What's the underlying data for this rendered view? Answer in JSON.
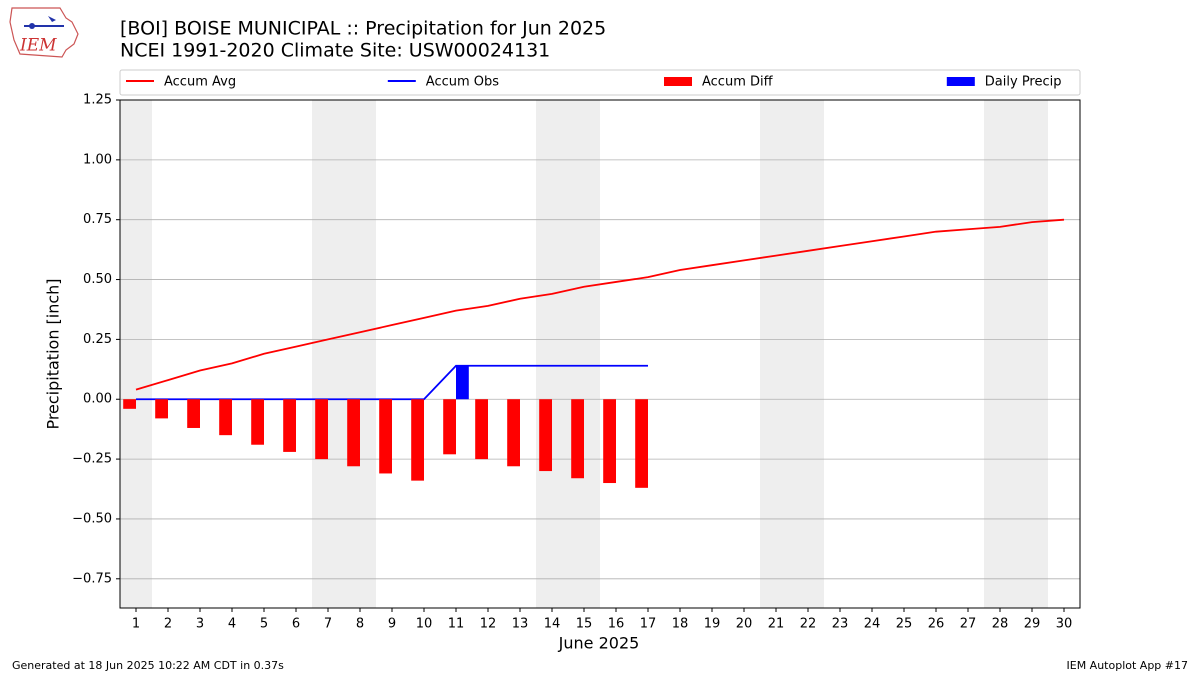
{
  "chart_data": {
    "type": "combo",
    "title": "[BOI] BOISE MUNICIPAL :: Precipitation for Jun 2025",
    "subtitle": "NCEI 1991-2020 Climate Site: USW00024131",
    "ylabel": "Precipitation [inch]",
    "xlabel": "June 2025",
    "x": [
      1,
      2,
      3,
      4,
      5,
      6,
      7,
      8,
      9,
      10,
      11,
      12,
      13,
      14,
      15,
      16,
      17,
      18,
      19,
      20,
      21,
      22,
      23,
      24,
      25,
      26,
      27,
      28,
      29,
      30
    ],
    "xlim": [
      0.5,
      30.5
    ],
    "xticks": [
      1,
      2,
      3,
      4,
      5,
      6,
      7,
      8,
      9,
      10,
      11,
      12,
      13,
      14,
      15,
      16,
      17,
      18,
      19,
      20,
      21,
      22,
      23,
      24,
      25,
      26,
      27,
      28,
      29,
      30
    ],
    "ylim": [
      -0.872,
      1.25
    ],
    "yticks": [
      {
        "value": -0.75,
        "label": "−0.75"
      },
      {
        "value": -0.5,
        "label": "−0.50"
      },
      {
        "value": -0.25,
        "label": "−0.25"
      },
      {
        "value": 0,
        "label": "0.00"
      },
      {
        "value": 0.25,
        "label": "0.25"
      },
      {
        "value": 0.5,
        "label": "0.50"
      },
      {
        "value": 0.75,
        "label": "0.75"
      },
      {
        "value": 1,
        "label": "1.00"
      },
      {
        "value": 1.25,
        "label": "1.25"
      }
    ],
    "grid": true,
    "shaded_days": [
      1,
      7,
      8,
      14,
      15,
      21,
      22,
      28,
      29
    ],
    "legend": "top",
    "series": [
      {
        "name": "Accum Avg",
        "kind": "line",
        "color": "#ff0000",
        "values": [
          0.04,
          0.08,
          0.12,
          0.15,
          0.19,
          0.22,
          0.25,
          0.28,
          0.31,
          0.34,
          0.37,
          0.39,
          0.42,
          0.44,
          0.47,
          0.49,
          0.51,
          0.54,
          0.56,
          0.58,
          0.6,
          0.62,
          0.64,
          0.66,
          0.68,
          0.7,
          0.71,
          0.72,
          0.74,
          0.75
        ]
      },
      {
        "name": "Accum Obs",
        "kind": "line",
        "color": "#0000ff",
        "values": [
          0,
          0,
          0,
          0,
          0,
          0,
          0,
          0,
          0,
          0,
          0.14,
          0.14,
          0.14,
          0.14,
          0.14,
          0.14,
          0.14,
          null,
          null,
          null,
          null,
          null,
          null,
          null,
          null,
          null,
          null,
          null,
          null,
          null
        ]
      },
      {
        "name": "Accum Diff",
        "kind": "bar-left",
        "color": "#ff0000",
        "values": [
          -0.04,
          -0.08,
          -0.12,
          -0.15,
          -0.19,
          -0.22,
          -0.25,
          -0.28,
          -0.31,
          -0.34,
          -0.23,
          -0.25,
          -0.28,
          -0.3,
          -0.33,
          -0.35,
          -0.37,
          null,
          null,
          null,
          null,
          null,
          null,
          null,
          null,
          null,
          null,
          null,
          null,
          null
        ]
      },
      {
        "name": "Daily Precip",
        "kind": "bar-right",
        "color": "#0000ff",
        "values": [
          0,
          0,
          0,
          0,
          0,
          0,
          0,
          0,
          0,
          0,
          0.14,
          0,
          0,
          0,
          0,
          0,
          0,
          null,
          null,
          null,
          null,
          null,
          null,
          null,
          null,
          null,
          null,
          null,
          null,
          null
        ]
      }
    ]
  },
  "logo_text": "IEM",
  "footer": {
    "left": "Generated at 18 Jun 2025 10:22 AM CDT in 0.37s",
    "right": "IEM Autoplot App #17"
  }
}
